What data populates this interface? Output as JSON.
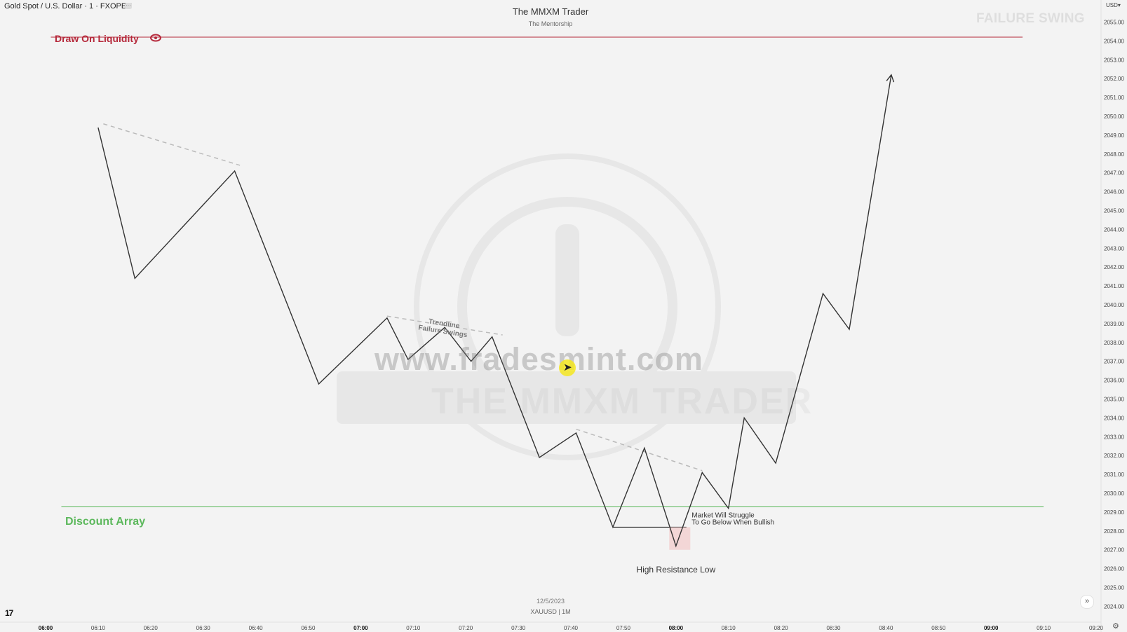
{
  "header": {
    "symbol": "Gold Spot / U.S. Dollar · 1 · FXOPEN",
    "brand_title": "The MMXM Trader",
    "brand_subtitle": "The Mentorship",
    "corner_title": "FAILURE SWING",
    "currency": "USD"
  },
  "footer": {
    "date": "12/5/2023",
    "symbol": "XAUUSD | 1M",
    "logo": "17"
  },
  "watermark": {
    "url": "www.fradesmint.com",
    "brand": "THE MMXM TRADER"
  },
  "colors": {
    "background": "#f3f3f3",
    "price_line": "#333333",
    "draw_on_liquidity": "#b5283a",
    "discount_array": "#5cb85c",
    "dashed_trendline": "#bbbbbb",
    "low_highlight": "#f2c9c9",
    "axis_text": "#444444"
  },
  "chart_data": {
    "type": "line",
    "title": "",
    "xlabel": "",
    "ylabel": "",
    "ylim": [
      2023.5,
      2056.2
    ],
    "x_tick_labels": [
      "06:00",
      "06:10",
      "06:20",
      "06:30",
      "06:40",
      "06:50",
      "07:00",
      "07:10",
      "07:20",
      "07:30",
      "07:40",
      "07:50",
      "08:00",
      "08:10",
      "08:20",
      "08:30",
      "08:40",
      "08:50",
      "09:00",
      "09:10",
      "09:20"
    ],
    "x_tick_bold": [
      "06:00",
      "07:00",
      "08:00",
      "09:00"
    ],
    "y_tick_labels": [
      "2055.00",
      "2054.00",
      "2053.00",
      "2052.00",
      "2051.00",
      "2050.00",
      "2049.00",
      "2048.00",
      "2047.00",
      "2046.00",
      "2045.00",
      "2044.00",
      "2043.00",
      "2042.00",
      "2041.00",
      "2040.00",
      "2039.00",
      "2038.00",
      "2037.00",
      "2036.00",
      "2035.00",
      "2034.00",
      "2033.00",
      "2032.00",
      "2031.00",
      "2030.00",
      "2029.00",
      "2028.00",
      "2027.00",
      "2026.00",
      "2025.00",
      "2024.00"
    ],
    "series": [
      {
        "x": [
          "06:10",
          "06:17",
          "06:36",
          "06:52",
          "07:05",
          "07:09",
          "07:16",
          "07:21",
          "07:25",
          "07:34",
          "07:41",
          "07:48",
          "07:54",
          "08:00",
          "08:05",
          "08:10",
          "08:13",
          "08:19",
          "08:28",
          "08:33",
          "08:41"
        ],
        "y": [
          2049.4,
          2041.4,
          2047.1,
          2035.8,
          2039.3,
          2037.1,
          2038.8,
          2037.0,
          2038.3,
          2031.9,
          2033.2,
          2028.2,
          2032.4,
          2027.2,
          2031.1,
          2029.2,
          2034.0,
          2031.6,
          2040.6,
          2038.7,
          2052.2
        ]
      }
    ],
    "horizontal_lines": [
      {
        "label": "Draw On Liquidity",
        "y": 2054.2,
        "from": "06:01",
        "to": "09:06"
      },
      {
        "label": "Discount Array",
        "y": 2029.3,
        "from": "06:03",
        "to": "09:10"
      }
    ],
    "trendlines": [
      {
        "from": [
          "06:11",
          2049.6
        ],
        "to": [
          "06:37",
          2047.4
        ]
      },
      {
        "from": [
          "07:05",
          2039.4
        ],
        "to": [
          "07:27",
          2038.4
        ]
      },
      {
        "from": [
          "07:41",
          2033.4
        ],
        "to": [
          "08:05",
          2031.2
        ]
      },
      {
        "from": [
          "07:48",
          2028.2
        ],
        "to": [
          "08:02",
          2028.2
        ]
      }
    ],
    "annotations": [
      {
        "text": "Trendline\nFailure Swings",
        "x": "07:15",
        "y": 2039.0
      },
      {
        "text": "Market Will Struggle\nTo Go Below When Bullish",
        "x": "08:03",
        "y": 2028.5
      },
      {
        "text": "High Resistance Low",
        "x": "08:00",
        "y": 2026.2
      }
    ],
    "grid": false,
    "legend": "none"
  }
}
